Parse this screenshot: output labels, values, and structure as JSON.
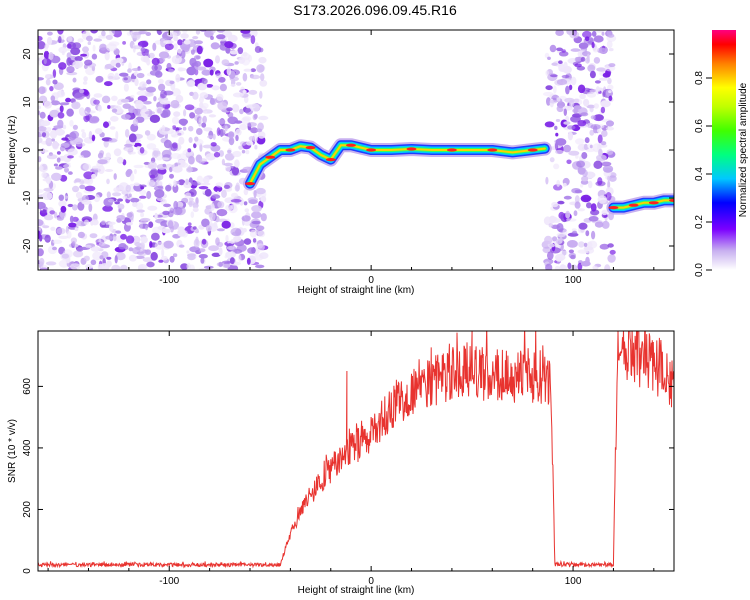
{
  "title": "S173.2026.096.09.45.R16",
  "colors": {
    "noise": "#8a2be2",
    "snr_line": "#e8332f",
    "axis": "#000000"
  },
  "chart_data": [
    {
      "type": "heatmap",
      "title": "S173.2026.096.09.45.R16",
      "xlabel": "Height of straight line (km)",
      "ylabel": "Frequency (Hz)",
      "xlim": [
        -165,
        150
      ],
      "ylim": [
        -25,
        25
      ],
      "x_ticks": [
        -100,
        0,
        100
      ],
      "x_tick_labels": [
        "-100",
        "0",
        "100"
      ],
      "y_ticks": [
        -20,
        -10,
        0,
        10,
        20
      ],
      "y_tick_labels": [
        "-20",
        "-10",
        "0",
        "10",
        "20"
      ],
      "noise_regions": [
        [
          -165,
          -53
        ],
        [
          87,
          120
        ]
      ],
      "ridge": {
        "x": [
          -60,
          -55,
          -50,
          -45,
          -40,
          -35,
          -30,
          -25,
          -20,
          -15,
          -10,
          -5,
          0,
          10,
          20,
          30,
          40,
          50,
          60,
          70,
          80,
          86
        ],
        "y": [
          -7,
          -3,
          -1.5,
          0,
          0,
          0.8,
          0.5,
          -1,
          -2,
          1,
          1,
          0.5,
          0,
          0,
          0.2,
          0,
          0,
          0,
          0,
          -0.5,
          0,
          0.3
        ]
      },
      "ridge_segment_2": {
        "x": [
          120,
          125,
          130,
          135,
          140,
          145,
          150
        ],
        "y": [
          -12,
          -12,
          -11.5,
          -11,
          -11,
          -10.5,
          -10.5
        ]
      },
      "colorbar": {
        "label": "Normalized spectral amplitude",
        "range": [
          0,
          1
        ],
        "ticks": [
          0.0,
          0.2,
          0.4,
          0.6,
          0.8
        ],
        "tick_labels": [
          "0.0",
          "0.2",
          "0.4",
          "0.6",
          "0.8"
        ]
      }
    },
    {
      "type": "line",
      "xlabel": "Height of straight line (km)",
      "ylabel": "SNR (10 * v/v)",
      "xlim": [
        -165,
        150
      ],
      "ylim": [
        0,
        780
      ],
      "x_ticks": [
        -100,
        0,
        100
      ],
      "x_tick_labels": [
        "-100",
        "0",
        "100"
      ],
      "y_ticks": [
        0,
        200,
        400,
        600
      ],
      "y_tick_labels": [
        "0",
        "200",
        "400",
        "600"
      ],
      "series": [
        {
          "name": "SNR",
          "x": [
            -165,
            -45,
            -42,
            -38,
            -34,
            -30,
            -25,
            -20,
            -15,
            -10,
            -5,
            0,
            5,
            10,
            15,
            20,
            25,
            30,
            35,
            40,
            45,
            50,
            55,
            60,
            65,
            70,
            75,
            80,
            85,
            89,
            91,
            120,
            122,
            125,
            130,
            135,
            140,
            145,
            150
          ],
          "values": [
            20,
            20,
            80,
            150,
            200,
            250,
            290,
            330,
            360,
            390,
            420,
            450,
            490,
            520,
            560,
            590,
            610,
            620,
            630,
            640,
            640,
            650,
            640,
            640,
            640,
            630,
            630,
            630,
            630,
            600,
            20,
            20,
            690,
            700,
            700,
            690,
            670,
            640,
            600
          ]
        }
      ],
      "spikes": [
        {
          "x": -12,
          "y": 650
        },
        {
          "x": 50,
          "y": 790
        }
      ]
    }
  ]
}
